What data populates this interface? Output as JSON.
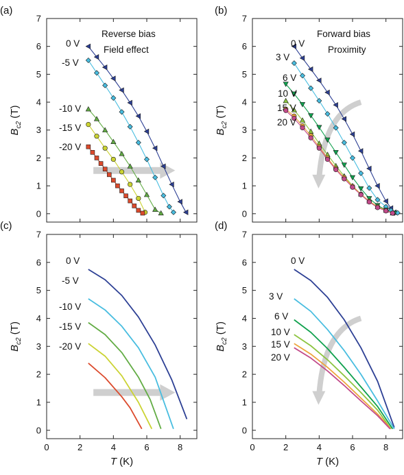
{
  "figure": {
    "x_axis": {
      "symbol": "T",
      "unit": "(K)"
    },
    "y_axis": {
      "symbol": "B",
      "subscript": "c2",
      "unit": "(T)"
    },
    "x_ticks": [
      "0",
      "2",
      "4",
      "6",
      "8"
    ],
    "y_ticks": [
      "0",
      "1",
      "2",
      "3",
      "4",
      "5",
      "6",
      "7"
    ]
  },
  "colors": {
    "0": "#2c3f94",
    "-5": "#48bde0",
    "-10": "#62ac44",
    "-15": "#cbd332",
    "-20": "#dc4a2c",
    "3": "#48bde0",
    "6": "#10a14e",
    "10": "#8cc43f",
    "15": "#eea43c",
    "20": "#c24a8a",
    "arrow": "#cfcfcf"
  },
  "chart_data": [
    {
      "panel": "(a)",
      "type": "scatter",
      "annotation": [
        "Reverse bias",
        "Field effect"
      ],
      "xlim": [
        0,
        9
      ],
      "ylim": [
        -0.3,
        7
      ],
      "series": [
        {
          "name": "0 V",
          "key": "0",
          "marker": "triangle-left",
          "x": [
            2.5,
            3.0,
            3.5,
            4.0,
            4.5,
            5.0,
            5.5,
            6.0,
            6.5,
            7.0,
            7.5,
            8.0,
            8.35
          ],
          "y": [
            6.0,
            5.62,
            5.25,
            4.85,
            4.43,
            3.98,
            3.5,
            2.95,
            2.35,
            1.7,
            1.05,
            0.43,
            0.05
          ]
        },
        {
          "name": "-5 V",
          "key": "-5",
          "marker": "diamond",
          "x": [
            2.5,
            3.0,
            3.5,
            4.0,
            4.5,
            5.0,
            5.5,
            6.0,
            6.5,
            7.0,
            7.35,
            7.6
          ],
          "y": [
            5.5,
            5.05,
            4.6,
            4.15,
            3.65,
            3.12,
            2.55,
            1.95,
            1.3,
            0.65,
            0.25,
            0.05
          ]
        },
        {
          "name": "-10 V",
          "key": "-10",
          "marker": "triangle",
          "x": [
            2.5,
            3.0,
            3.5,
            4.0,
            4.5,
            5.0,
            5.5,
            6.0,
            6.5,
            6.85
          ],
          "y": [
            3.75,
            3.4,
            3.0,
            2.58,
            2.15,
            1.7,
            1.2,
            0.68,
            0.15,
            0.02
          ]
        },
        {
          "name": "-15 V",
          "key": "-15",
          "marker": "circle",
          "x": [
            2.5,
            3.0,
            3.5,
            4.0,
            4.5,
            5.0,
            5.5,
            5.9
          ],
          "y": [
            3.2,
            2.78,
            2.35,
            1.95,
            1.5,
            1.05,
            0.55,
            0.05
          ]
        },
        {
          "name": "-20 V",
          "key": "-20",
          "marker": "square",
          "x": [
            2.5,
            2.75,
            3.0,
            3.25,
            3.5,
            3.75,
            4.0,
            4.25,
            4.5,
            4.75,
            5.0,
            5.25,
            5.5,
            5.75
          ],
          "y": [
            2.4,
            2.2,
            2.0,
            1.8,
            1.6,
            1.4,
            1.2,
            1.0,
            0.82,
            0.64,
            0.46,
            0.28,
            0.12,
            0.02
          ]
        }
      ]
    },
    {
      "panel": "(b)",
      "type": "scatter",
      "annotation": [
        "Forward bias",
        "Proximity"
      ],
      "xlim": [
        0,
        9
      ],
      "ylim": [
        -0.3,
        7
      ],
      "series": [
        {
          "name": "0 V",
          "key": "0",
          "marker": "triangle-left",
          "x": [
            2.5,
            3.0,
            3.5,
            4.0,
            4.5,
            5.0,
            5.5,
            6.0,
            6.5,
            7.0,
            7.5,
            8.0,
            8.3,
            8.5
          ],
          "y": [
            6.0,
            5.58,
            5.18,
            4.78,
            4.35,
            3.9,
            3.4,
            2.85,
            2.25,
            1.62,
            1.0,
            0.45,
            0.2,
            0.05
          ]
        },
        {
          "name": "3 V",
          "key": "3",
          "marker": "diamond",
          "x": [
            2.5,
            3.0,
            3.5,
            4.0,
            4.5,
            5.0,
            5.5,
            6.0,
            6.5,
            7.0,
            7.5,
            8.0,
            8.3,
            8.7
          ],
          "y": [
            5.4,
            4.95,
            4.5,
            4.05,
            3.58,
            3.08,
            2.55,
            2.0,
            1.45,
            0.92,
            0.5,
            0.25,
            0.12,
            0.03
          ]
        },
        {
          "name": "6 V",
          "key": "6",
          "marker": "triangle-down",
          "x": [
            2.0,
            2.5,
            3.0,
            3.5,
            4.0,
            4.5,
            5.0,
            5.5,
            6.0,
            6.5,
            7.0,
            7.5,
            8.0,
            8.5
          ],
          "y": [
            4.65,
            4.3,
            3.92,
            3.52,
            3.1,
            2.65,
            2.2,
            1.75,
            1.3,
            0.9,
            0.55,
            0.3,
            0.13,
            0.02
          ]
        },
        {
          "name": "10 V",
          "key": "10",
          "marker": "triangle",
          "x": [
            2.0,
            2.5,
            3.0,
            3.5,
            4.0,
            4.5,
            5.0,
            5.5,
            6.0,
            6.5,
            7.0,
            7.5,
            8.0,
            8.4
          ],
          "y": [
            4.05,
            3.72,
            3.35,
            2.95,
            2.52,
            2.12,
            1.72,
            1.35,
            1.0,
            0.7,
            0.45,
            0.25,
            0.12,
            0.02
          ]
        },
        {
          "name": "15 V",
          "key": "15",
          "marker": "circle",
          "x": [
            2.0,
            2.5,
            3.0,
            3.5,
            4.0,
            4.5,
            5.0,
            5.5,
            6.0,
            6.5,
            7.0,
            7.5,
            8.0,
            8.4
          ],
          "y": [
            3.75,
            3.5,
            3.15,
            2.8,
            2.4,
            2.0,
            1.62,
            1.3,
            0.98,
            0.7,
            0.45,
            0.25,
            0.12,
            0.02
          ]
        },
        {
          "name": "20 V",
          "key": "20",
          "marker": "circle",
          "x": [
            2.0,
            2.5,
            3.0,
            3.5,
            4.0,
            4.5,
            5.0,
            5.5,
            6.0,
            6.5,
            7.0,
            7.5,
            8.0,
            8.4
          ],
          "y": [
            3.7,
            3.42,
            3.08,
            2.72,
            2.35,
            1.95,
            1.58,
            1.25,
            0.95,
            0.68,
            0.42,
            0.22,
            0.1,
            0.02
          ]
        }
      ]
    },
    {
      "panel": "(c)",
      "type": "line",
      "xlim": [
        0,
        9
      ],
      "ylim": [
        -0.3,
        7
      ],
      "series": [
        {
          "name": "0 V",
          "key": "0",
          "x": [
            2.5,
            3.5,
            4.5,
            5.5,
            6.5,
            7.5,
            8.4
          ],
          "y": [
            5.75,
            5.38,
            4.82,
            4.05,
            3.05,
            1.8,
            0.4
          ]
        },
        {
          "name": "-5 V",
          "key": "-5",
          "x": [
            2.5,
            3.5,
            4.5,
            5.5,
            6.5,
            7.6
          ],
          "y": [
            4.7,
            4.3,
            3.72,
            2.95,
            1.9,
            0.05
          ]
        },
        {
          "name": "-10 V",
          "key": "-10",
          "x": [
            2.5,
            3.5,
            4.5,
            5.5,
            6.2,
            6.85
          ],
          "y": [
            3.85,
            3.42,
            2.78,
            1.9,
            1.1,
            0.05
          ]
        },
        {
          "name": "-15 V",
          "key": "-15",
          "x": [
            2.5,
            3.5,
            4.5,
            5.5,
            6.3
          ],
          "y": [
            3.1,
            2.65,
            1.95,
            1.0,
            0.05
          ]
        },
        {
          "name": "-20 V",
          "key": "-20",
          "x": [
            2.5,
            3.5,
            4.5,
            5.0,
            5.7
          ],
          "y": [
            2.4,
            1.88,
            1.2,
            0.8,
            0.05
          ]
        }
      ]
    },
    {
      "panel": "(d)",
      "type": "line",
      "xlim": [
        0,
        9
      ],
      "ylim": [
        -0.3,
        7
      ],
      "series": [
        {
          "name": "0 V",
          "key": "0",
          "x": [
            2.5,
            3.5,
            4.5,
            5.5,
            6.5,
            7.5,
            8.5
          ],
          "y": [
            5.75,
            5.35,
            4.75,
            3.95,
            2.95,
            1.75,
            0.1
          ]
        },
        {
          "name": "3 V",
          "key": "3",
          "x": [
            2.5,
            3.5,
            4.5,
            5.5,
            6.5,
            7.5,
            8.5
          ],
          "y": [
            4.7,
            4.25,
            3.6,
            2.85,
            2.0,
            1.05,
            0.05
          ]
        },
        {
          "name": "6 V",
          "key": "6",
          "x": [
            2.5,
            3.5,
            4.5,
            5.5,
            6.5,
            7.5,
            8.4
          ],
          "y": [
            3.95,
            3.5,
            2.92,
            2.25,
            1.55,
            0.85,
            0.05
          ]
        },
        {
          "name": "10 V",
          "key": "10",
          "x": [
            2.5,
            3.5,
            4.5,
            5.5,
            6.5,
            7.5,
            8.3
          ],
          "y": [
            3.42,
            3.02,
            2.52,
            1.95,
            1.35,
            0.72,
            0.05
          ]
        },
        {
          "name": "15 V",
          "key": "15",
          "x": [
            2.5,
            3.5,
            4.5,
            5.5,
            6.5,
            7.5,
            8.3
          ],
          "y": [
            3.1,
            2.72,
            2.25,
            1.72,
            1.15,
            0.58,
            0.05
          ]
        },
        {
          "name": "20 V",
          "key": "20",
          "x": [
            2.5,
            3.5,
            4.5,
            5.5,
            6.5,
            7.5,
            8.25
          ],
          "y": [
            2.95,
            2.58,
            2.12,
            1.6,
            1.05,
            0.52,
            0.05
          ]
        }
      ]
    }
  ]
}
